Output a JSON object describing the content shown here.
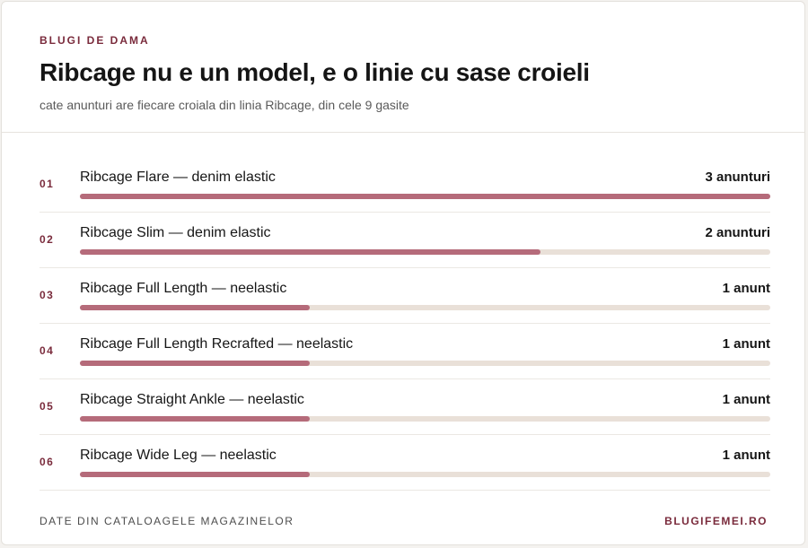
{
  "header": {
    "kicker": "BLUGI DE DAMA",
    "title": "Ribcage nu e un model, e o linie cu sase croieli",
    "subtitle": "cate anunturi are fiecare croiala din linia Ribcage, din cele 9 gasite"
  },
  "chart_data": {
    "type": "bar",
    "orientation": "horizontal",
    "categories": [
      "Ribcage Flare — denim elastic",
      "Ribcage Slim — denim elastic",
      "Ribcage Full Length — neelastic",
      "Ribcage Full Length Recrafted — neelastic",
      "Ribcage Straight Ankle — neelastic",
      "Ribcage Wide Leg — neelastic"
    ],
    "ranks": [
      "01",
      "02",
      "03",
      "04",
      "05",
      "06"
    ],
    "values": [
      3,
      2,
      1,
      1,
      1,
      1
    ],
    "value_labels": [
      "3 anunturi",
      "2 anunturi",
      "1 anunt",
      "1 anunt",
      "1 anunt",
      "1 anunt"
    ],
    "xlim": [
      0,
      3
    ],
    "colors": {
      "fill": "#b56b7a",
      "track": "#e9e0d8",
      "accent": "#7a2b3c"
    }
  },
  "footer": {
    "source": "DATE DIN CATALOAGELE MAGAZINELOR",
    "brand": "BLUGIFEMEI.RO"
  }
}
